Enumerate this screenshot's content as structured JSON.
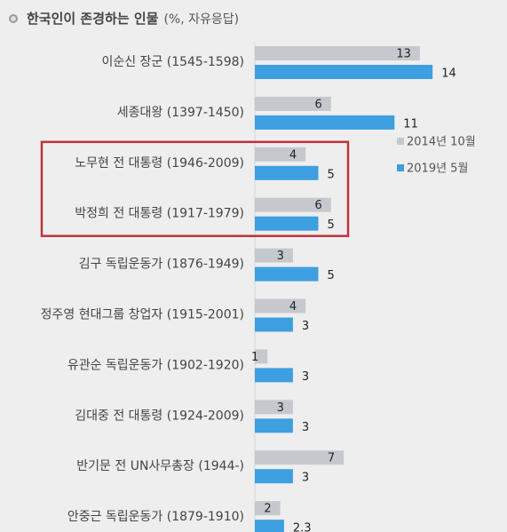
{
  "title": "한국인이 존경하는 인물",
  "title_note": "(%, 자유응답)",
  "colors": {
    "series1": "#c5c9ce",
    "series2": "#3d9fe0",
    "highlight": "#c0323c"
  },
  "chart_data": {
    "type": "bar",
    "orientation": "horizontal",
    "categories": [
      "이순신 장군 (1545-1598)",
      "세종대왕 (1397-1450)",
      "노무현 전 대통령 (1946-2009)",
      "박정희 전 대통령 (1917-1979)",
      "김구 독립운동가 (1876-1949)",
      "정주영 현대그룹 창업자 (1915-2001)",
      "유관순 독립운동가 (1902-1920)",
      "김대중 전 대통령 (1924-2009)",
      "반기문 전 UN사무총장 (1944-)",
      "안중근 독립운동가 (1879-1910)"
    ],
    "series": [
      {
        "name": "2014년 10월",
        "values": [
          13,
          6,
          4,
          6,
          3,
          4,
          1,
          3,
          7,
          2
        ]
      },
      {
        "name": "2019년 5월",
        "values": [
          14,
          11,
          5,
          5,
          5,
          3,
          3,
          3,
          3,
          2.3
        ]
      }
    ],
    "value_labels": [
      [
        "13",
        "6",
        "4",
        "6",
        "3",
        "4",
        "1",
        "3",
        "7",
        "2"
      ],
      [
        "14",
        "11",
        "5",
        "5",
        "5",
        "3",
        "3",
        "3",
        "3",
        "2.3"
      ]
    ],
    "highlighted_categories": [
      2,
      3
    ],
    "legend_position": "right"
  }
}
